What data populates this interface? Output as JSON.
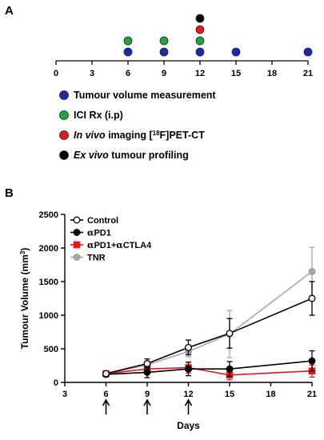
{
  "panel_a": {
    "label": "A",
    "axis_ticks": [
      "0",
      "3",
      "6",
      "9",
      "12",
      "15",
      "18",
      "21"
    ],
    "legend": [
      {
        "label": "Tumour volume measurement",
        "color": "#1a2aa8"
      },
      {
        "label": "ICI Rx (i.p)",
        "color": "#1fa53a"
      },
      {
        "label_parts": [
          "In vivo",
          " imaging [",
          "18",
          "F]PET-CT"
        ],
        "color": "#e01b1b"
      },
      {
        "label_parts": [
          "Ex vivo",
          " tumour profiling"
        ],
        "color": "#000000"
      }
    ]
  },
  "panel_b": {
    "label": "B"
  },
  "chart_data": [
    {
      "type": "dot_timeline",
      "x_range": [
        0,
        21
      ],
      "ticks": [
        0,
        3,
        6,
        9,
        12,
        15,
        18,
        21
      ],
      "events": [
        {
          "name": "Tumour volume measurement",
          "color": "#1a2aa8",
          "days": [
            6,
            9,
            12,
            15,
            21
          ]
        },
        {
          "name": "ICI Rx (i.p)",
          "color": "#1fa53a",
          "days": [
            6,
            9,
            12
          ]
        },
        {
          "name": "In vivo imaging [18F]PET-CT",
          "color": "#e01b1b",
          "days": [
            12
          ]
        },
        {
          "name": "Ex vivo tumour profiling",
          "color": "#000000",
          "days": [
            12
          ]
        }
      ]
    },
    {
      "type": "line",
      "xlabel": "Days",
      "ylabel_parts": [
        "Tumour Volume (mm",
        "3",
        ")"
      ],
      "xlim": [
        3,
        21
      ],
      "ylim": [
        0,
        2500
      ],
      "xticks": [
        3,
        6,
        9,
        12,
        15,
        18,
        21
      ],
      "yticks": [
        0,
        500,
        1000,
        1500,
        2000,
        2500
      ],
      "arrows_at_days": [
        6,
        9,
        12
      ],
      "legend_position": "top-left",
      "series": [
        {
          "name": "Control",
          "color": "#000000",
          "marker": "open-circle",
          "x": [
            6,
            9,
            12,
            15,
            21
          ],
          "y": [
            130,
            280,
            520,
            730,
            1250
          ],
          "err": [
            30,
            70,
            110,
            220,
            250
          ]
        },
        {
          "name_parts": [
            "α",
            "PD1"
          ],
          "color": "#000000",
          "marker": "filled-circle",
          "x": [
            6,
            9,
            12,
            15,
            21
          ],
          "y": [
            120,
            150,
            200,
            200,
            320
          ],
          "err": [
            25,
            80,
            100,
            110,
            150
          ]
        },
        {
          "name_parts": [
            "α",
            "PD1+",
            "α",
            "CTLA4"
          ],
          "color": "#e01b1b",
          "marker": "filled-square",
          "x": [
            6,
            9,
            12,
            15,
            21
          ],
          "y": [
            130,
            200,
            220,
            110,
            170
          ],
          "err": [
            20,
            60,
            80,
            70,
            90
          ]
        },
        {
          "name": "TNR",
          "color": "#a8a8a8",
          "marker": "filled-circle",
          "x": [
            6,
            9,
            12,
            15,
            21
          ],
          "y": [
            130,
            260,
            460,
            720,
            1650
          ],
          "err": [
            30,
            60,
            80,
            350,
            360
          ]
        }
      ]
    }
  ]
}
